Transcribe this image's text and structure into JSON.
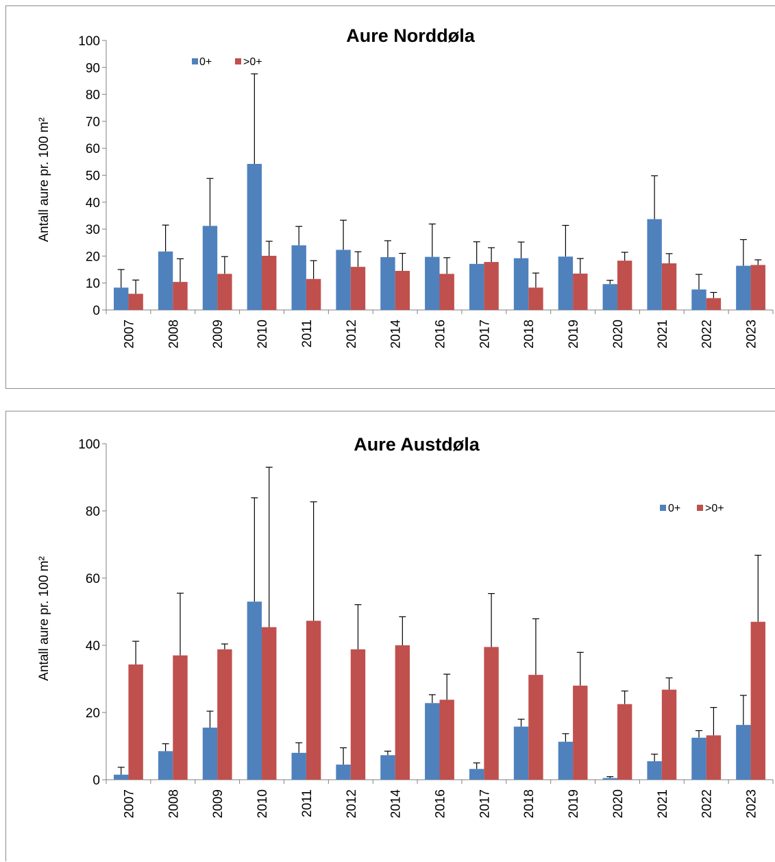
{
  "colors": {
    "s0": "#4f81bd",
    "s1": "#c0504d",
    "axis": "#7f7f7f",
    "err": "#000000"
  },
  "chart_data": [
    {
      "type": "bar",
      "title": "Aure Norddøla",
      "xlabel": "",
      "ylabel": "Antall aure pr. 100 m²",
      "ylim": [
        0,
        100
      ],
      "yticks": [
        "0",
        "10",
        "20",
        "30",
        "40",
        "50",
        "60",
        "70",
        "80",
        "90",
        "100"
      ],
      "categories": [
        "2007",
        "2008",
        "2009",
        "2010",
        "2011",
        "2012",
        "2014",
        "2016",
        "2017",
        "2018",
        "2019",
        "2020",
        "2021",
        "2022",
        "2023"
      ],
      "legend_position": "top-left",
      "series": [
        {
          "name": "0+",
          "values": [
            8.3,
            21.7,
            31.2,
            54.2,
            24.0,
            22.3,
            19.6,
            19.7,
            17.1,
            19.2,
            19.8,
            9.6,
            33.7,
            7.6,
            16.4
          ],
          "error_upper": [
            15.0,
            31.5,
            48.8,
            87.6,
            31.0,
            33.3,
            25.7,
            31.9,
            25.3,
            25.2,
            31.4,
            11.0,
            49.8,
            13.2,
            26.1
          ]
        },
        {
          "name": ">0+",
          "values": [
            6.0,
            10.4,
            13.4,
            20.1,
            11.5,
            16.0,
            14.5,
            13.4,
            17.8,
            8.3,
            13.5,
            18.3,
            17.3,
            4.4,
            16.7
          ],
          "error_upper": [
            11.1,
            19.0,
            19.8,
            25.5,
            18.3,
            21.6,
            21.0,
            19.4,
            23.1,
            13.7,
            19.1,
            21.4,
            20.9,
            6.5,
            18.6
          ]
        }
      ]
    },
    {
      "type": "bar",
      "title": "Aure Austdøla",
      "xlabel": "",
      "ylabel": "Antall aure pr. 100 m²",
      "ylim": [
        0,
        100
      ],
      "yticks": [
        "0",
        "20",
        "40",
        "60",
        "80",
        "100"
      ],
      "categories": [
        "2007",
        "2008",
        "2009",
        "2010",
        "2011",
        "2012",
        "2014",
        "2016",
        "2017",
        "2018",
        "2019",
        "2020",
        "2021",
        "2022",
        "2023"
      ],
      "legend_position": "top-right",
      "series": [
        {
          "name": "0+",
          "values": [
            1.5,
            8.5,
            15.5,
            53.0,
            8.0,
            4.5,
            7.3,
            22.8,
            3.2,
            15.8,
            11.3,
            0.5,
            5.5,
            12.5,
            16.3
          ],
          "error_upper": [
            3.7,
            10.7,
            20.4,
            83.9,
            11.0,
            9.5,
            8.5,
            25.3,
            5.0,
            18.0,
            13.7,
            0.9,
            7.6,
            14.6,
            25.1
          ]
        },
        {
          "name": ">0+",
          "values": [
            34.3,
            37.0,
            38.8,
            45.4,
            47.3,
            38.8,
            40.0,
            23.8,
            39.5,
            31.2,
            28.0,
            22.5,
            26.8,
            13.2,
            47.0
          ],
          "error_upper": [
            41.2,
            55.5,
            40.4,
            93.0,
            82.7,
            52.1,
            48.5,
            31.4,
            55.4,
            47.9,
            37.9,
            26.4,
            30.3,
            21.5,
            66.8
          ]
        }
      ]
    }
  ]
}
